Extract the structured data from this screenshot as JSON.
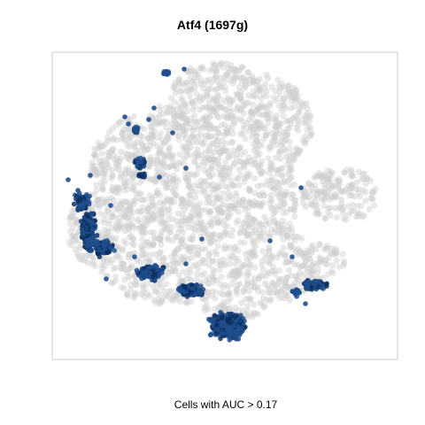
{
  "title": "Atf4 (1697g)",
  "caption": "Cells with AUC > 0.17",
  "colors": {
    "background_cells": "#cfcfcf",
    "highlight_cells": "#1f4e8c",
    "highlight_cells_dark": "#0d2f5e",
    "panel_border": "#cccccc"
  },
  "chart_data": {
    "type": "scatter",
    "title": "Atf4 (1697g)",
    "xlabel": "Cells with AUC > 0.17",
    "ylabel": "",
    "axes_ticks_visible": false,
    "grid": false,
    "series": [
      {
        "name": "",
        "color": "#cfcfcf"
      },
      {
        "name": "",
        "color": "#1f4e8c"
      }
    ]
  }
}
